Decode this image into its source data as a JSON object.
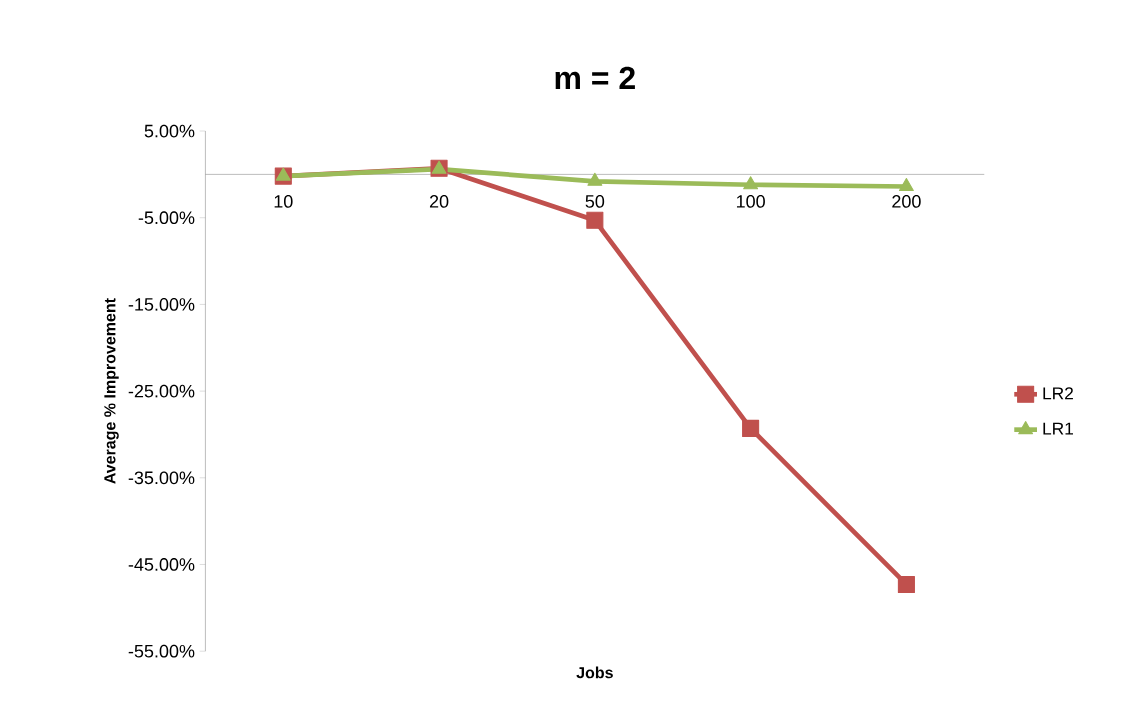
{
  "chart_data": {
    "type": "line",
    "title": "m = 2",
    "xlabel": "Jobs",
    "ylabel": "Average % Improvement",
    "categories": [
      "10",
      "20",
      "50",
      "100",
      "200"
    ],
    "series": [
      {
        "name": "LR2",
        "color": "#c0504d",
        "marker": "square",
        "values": [
          -0.2,
          0.7,
          -5.3,
          -29.3,
          -47.3
        ]
      },
      {
        "name": "LR1",
        "color": "#9bbb59",
        "marker": "triangle",
        "values": [
          -0.2,
          0.6,
          -0.8,
          -1.2,
          -1.4
        ]
      }
    ],
    "ylim": [
      -55,
      5
    ],
    "yticks": [
      {
        "value": 5,
        "label": "5.00%"
      },
      {
        "value": -5,
        "label": "-5.00%"
      },
      {
        "value": -15,
        "label": "-15.00%"
      },
      {
        "value": -25,
        "label": "-25.00%"
      },
      {
        "value": -35,
        "label": "-35.00%"
      },
      {
        "value": -45,
        "label": "-45.00%"
      },
      {
        "value": -55,
        "label": "-55.00%"
      }
    ],
    "grid": false,
    "legend": "right",
    "line_style": "solid"
  }
}
